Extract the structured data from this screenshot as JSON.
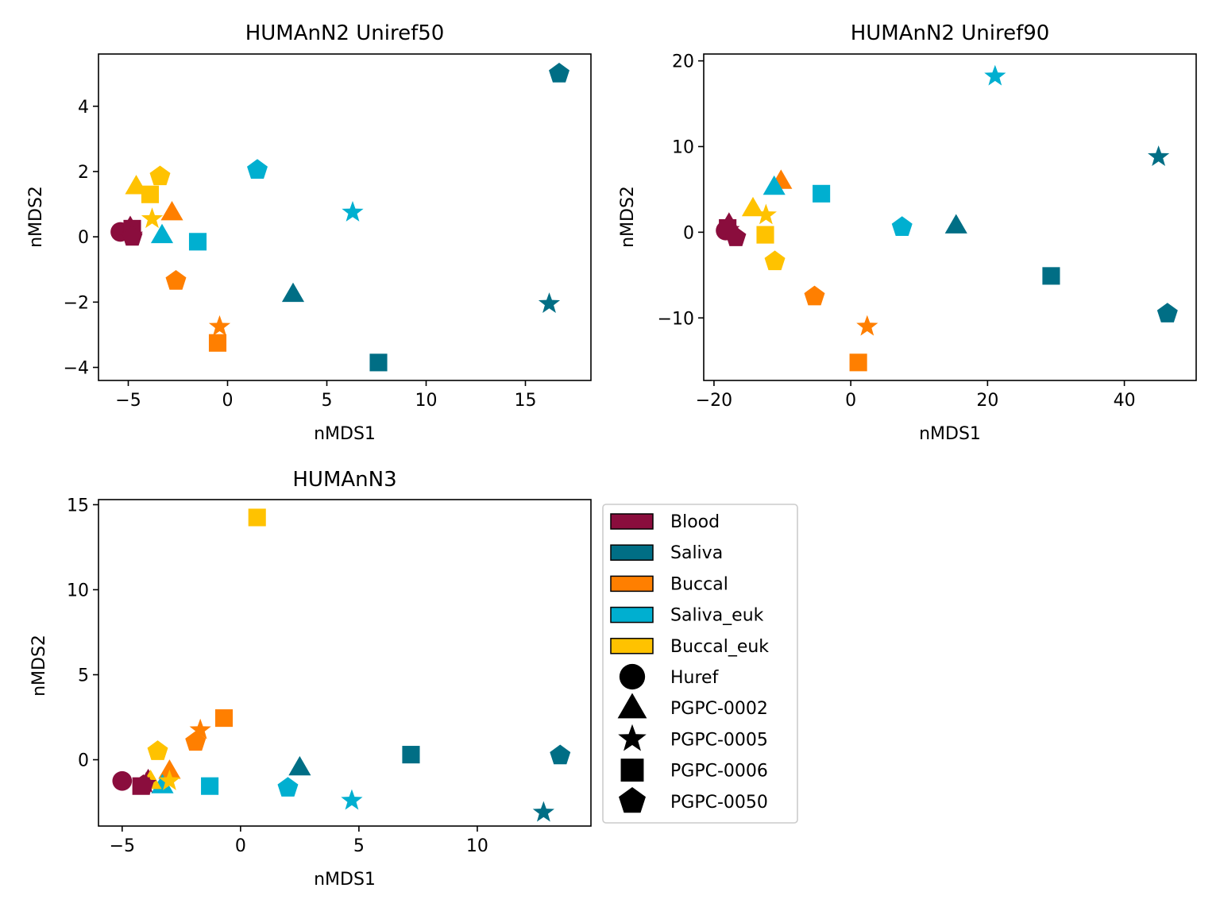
{
  "colors": {
    "Blood": "#8a0d3d",
    "Saliva": "#006e85",
    "Buccal": "#ff7f00",
    "Saliva_euk": "#00afd0",
    "Buccal_euk": "#ffc200"
  },
  "legend": {
    "placement": "right of bottom-left panel",
    "color_items": [
      {
        "label": "Blood",
        "color": "#8a0d3d"
      },
      {
        "label": "Saliva",
        "color": "#006e85"
      },
      {
        "label": "Buccal",
        "color": "#ff7f00"
      },
      {
        "label": "Saliva_euk",
        "color": "#00afd0"
      },
      {
        "label": "Buccal_euk",
        "color": "#ffc200"
      }
    ],
    "marker_items": [
      {
        "label": "Huref",
        "marker": "circle"
      },
      {
        "label": "PGPC-0002",
        "marker": "triangle"
      },
      {
        "label": "PGPC-0005",
        "marker": "star"
      },
      {
        "label": "PGPC-0006",
        "marker": "square"
      },
      {
        "label": "PGPC-0050",
        "marker": "pentagon"
      }
    ]
  },
  "chart_data": [
    {
      "type": "scatter",
      "title": "HUMAnN2 Uniref50",
      "xlabel": "nMDS1",
      "ylabel": "nMDS2",
      "xlim": [
        -6.5,
        18.3
      ],
      "ylim": [
        -4.4,
        5.6
      ],
      "xticks": [
        -5,
        0,
        5,
        10,
        15
      ],
      "xticklabels": [
        "−5",
        "0",
        "5",
        "10",
        "15"
      ],
      "yticks": [
        -4,
        -2,
        0,
        2,
        4
      ],
      "yticklabels": [
        "−4",
        "−2",
        "0",
        "2",
        "4"
      ],
      "grid": false,
      "points": [
        {
          "group": "Blood",
          "marker": "circle",
          "x": -5.4,
          "y": 0.15
        },
        {
          "group": "Blood",
          "marker": "triangle",
          "x": -4.9,
          "y": 0.3
        },
        {
          "group": "Blood",
          "marker": "star",
          "x": -4.8,
          "y": 0.05
        },
        {
          "group": "Blood",
          "marker": "square",
          "x": -4.8,
          "y": 0.25
        },
        {
          "group": "Blood",
          "marker": "pentagon",
          "x": -4.8,
          "y": 0.0
        },
        {
          "group": "Saliva",
          "marker": "triangle",
          "x": 3.3,
          "y": -1.75
        },
        {
          "group": "Saliva",
          "marker": "star",
          "x": 16.2,
          "y": -2.05
        },
        {
          "group": "Saliva",
          "marker": "square",
          "x": 7.6,
          "y": -3.85
        },
        {
          "group": "Saliva",
          "marker": "pentagon",
          "x": 16.7,
          "y": 5.0
        },
        {
          "group": "Buccal",
          "marker": "triangle",
          "x": -2.8,
          "y": 0.75
        },
        {
          "group": "Buccal",
          "marker": "star",
          "x": -0.4,
          "y": -2.75
        },
        {
          "group": "Buccal",
          "marker": "square",
          "x": -0.5,
          "y": -3.25
        },
        {
          "group": "Buccal",
          "marker": "pentagon",
          "x": -2.6,
          "y": -1.35
        },
        {
          "group": "Saliva_euk",
          "marker": "triangle",
          "x": -3.3,
          "y": 0.05
        },
        {
          "group": "Saliva_euk",
          "marker": "star",
          "x": 6.3,
          "y": 0.75
        },
        {
          "group": "Saliva_euk",
          "marker": "square",
          "x": -1.5,
          "y": -0.15
        },
        {
          "group": "Saliva_euk",
          "marker": "pentagon",
          "x": 1.5,
          "y": 2.05
        },
        {
          "group": "Buccal_euk",
          "marker": "triangle",
          "x": -4.6,
          "y": 1.55
        },
        {
          "group": "Buccal_euk",
          "marker": "star",
          "x": -3.8,
          "y": 0.55
        },
        {
          "group": "Buccal_euk",
          "marker": "square",
          "x": -3.9,
          "y": 1.3
        },
        {
          "group": "Buccal_euk",
          "marker": "pentagon",
          "x": -3.4,
          "y": 1.85
        }
      ]
    },
    {
      "type": "scatter",
      "title": "HUMAnN2 Uniref90",
      "xlabel": "nMDS1",
      "ylabel": "nMDS2",
      "xlim": [
        -21.5,
        50.5
      ],
      "ylim": [
        -17.3,
        20.8
      ],
      "xticks": [
        -20,
        0,
        20,
        40
      ],
      "xticklabels": [
        "−20",
        "0",
        "20",
        "40"
      ],
      "yticks": [
        -10,
        0,
        10,
        20
      ],
      "yticklabels": [
        "−10",
        "0",
        "10",
        "20"
      ],
      "grid": false,
      "points": [
        {
          "group": "Blood",
          "marker": "circle",
          "x": -18.3,
          "y": 0.2
        },
        {
          "group": "Blood",
          "marker": "triangle",
          "x": -17.8,
          "y": 1.0
        },
        {
          "group": "Blood",
          "marker": "star",
          "x": -17.8,
          "y": 0.3
        },
        {
          "group": "Blood",
          "marker": "square",
          "x": -18.0,
          "y": 0.5
        },
        {
          "group": "Blood",
          "marker": "pentagon",
          "x": -16.8,
          "y": -0.6
        },
        {
          "group": "Saliva",
          "marker": "triangle",
          "x": 15.4,
          "y": 0.8
        },
        {
          "group": "Saliva",
          "marker": "star",
          "x": 45.0,
          "y": 8.8
        },
        {
          "group": "Saliva",
          "marker": "square",
          "x": 29.3,
          "y": -5.1
        },
        {
          "group": "Saliva",
          "marker": "pentagon",
          "x": 46.3,
          "y": -9.5
        },
        {
          "group": "Buccal",
          "marker": "triangle",
          "x": -10.2,
          "y": 6.0
        },
        {
          "group": "Buccal",
          "marker": "star",
          "x": 2.4,
          "y": -11.0
        },
        {
          "group": "Buccal",
          "marker": "square",
          "x": 1.1,
          "y": -15.2
        },
        {
          "group": "Buccal",
          "marker": "pentagon",
          "x": -5.3,
          "y": -7.5
        },
        {
          "group": "Saliva_euk",
          "marker": "triangle",
          "x": -11.2,
          "y": 5.3
        },
        {
          "group": "Saliva_euk",
          "marker": "star",
          "x": 21.1,
          "y": 18.2
        },
        {
          "group": "Saliva_euk",
          "marker": "square",
          "x": -4.3,
          "y": 4.5
        },
        {
          "group": "Saliva_euk",
          "marker": "pentagon",
          "x": 7.5,
          "y": 0.6
        },
        {
          "group": "Buccal_euk",
          "marker": "triangle",
          "x": -14.3,
          "y": 2.8
        },
        {
          "group": "Buccal_euk",
          "marker": "star",
          "x": -12.4,
          "y": 2.0
        },
        {
          "group": "Buccal_euk",
          "marker": "square",
          "x": -12.5,
          "y": -0.3
        },
        {
          "group": "Buccal_euk",
          "marker": "pentagon",
          "x": -11.1,
          "y": -3.4
        }
      ]
    },
    {
      "type": "scatter",
      "title": "HUMAnN3",
      "xlabel": "nMDS1",
      "ylabel": "nMDS2",
      "xlim": [
        -6.0,
        14.8
      ],
      "ylim": [
        -3.9,
        15.3
      ],
      "xticks": [
        -5,
        0,
        5,
        10
      ],
      "xticklabels": [
        "−5",
        "0",
        "5",
        "10"
      ],
      "yticks": [
        0,
        5,
        10,
        15
      ],
      "yticklabels": [
        "0",
        "5",
        "10",
        "15"
      ],
      "grid": false,
      "points": [
        {
          "group": "Blood",
          "marker": "circle",
          "x": -5.0,
          "y": -1.25
        },
        {
          "group": "Blood",
          "marker": "triangle",
          "x": -3.9,
          "y": -1.2
        },
        {
          "group": "Blood",
          "marker": "star",
          "x": -4.0,
          "y": -1.4
        },
        {
          "group": "Blood",
          "marker": "square",
          "x": -4.2,
          "y": -1.55
        },
        {
          "group": "Blood",
          "marker": "pentagon",
          "x": -4.1,
          "y": -1.5
        },
        {
          "group": "Saliva",
          "marker": "triangle",
          "x": 2.5,
          "y": -0.45
        },
        {
          "group": "Saliva",
          "marker": "star",
          "x": 12.8,
          "y": -3.1
        },
        {
          "group": "Saliva",
          "marker": "square",
          "x": 7.2,
          "y": 0.3
        },
        {
          "group": "Saliva",
          "marker": "pentagon",
          "x": 13.5,
          "y": 0.25
        },
        {
          "group": "Buccal",
          "marker": "triangle",
          "x": -3.0,
          "y": -0.65
        },
        {
          "group": "Buccal",
          "marker": "star",
          "x": -1.7,
          "y": 1.75
        },
        {
          "group": "Buccal",
          "marker": "square",
          "x": -0.7,
          "y": 2.45
        },
        {
          "group": "Buccal",
          "marker": "pentagon",
          "x": -1.9,
          "y": 1.05
        },
        {
          "group": "Saliva_euk",
          "marker": "triangle",
          "x": -3.3,
          "y": -1.5
        },
        {
          "group": "Saliva_euk",
          "marker": "star",
          "x": 4.7,
          "y": -2.4
        },
        {
          "group": "Saliva_euk",
          "marker": "square",
          "x": -1.3,
          "y": -1.55
        },
        {
          "group": "Saliva_euk",
          "marker": "pentagon",
          "x": 2.0,
          "y": -1.65
        },
        {
          "group": "Buccal_euk",
          "marker": "triangle",
          "x": -3.8,
          "y": -1.25
        },
        {
          "group": "Buccal_euk",
          "marker": "star",
          "x": -3.0,
          "y": -1.25
        },
        {
          "group": "Buccal_euk",
          "marker": "square",
          "x": 0.7,
          "y": 14.25
        },
        {
          "group": "Buccal_euk",
          "marker": "pentagon",
          "x": -3.5,
          "y": 0.5
        }
      ]
    }
  ]
}
